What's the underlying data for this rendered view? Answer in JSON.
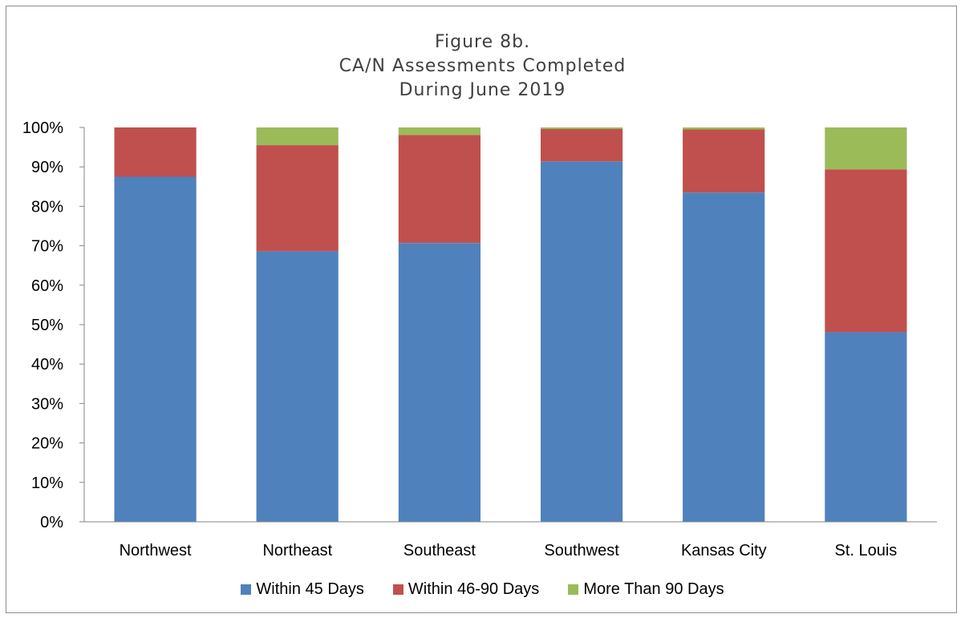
{
  "chart_data": {
    "type": "bar",
    "stacked": true,
    "title_lines": [
      "Figure 8b.",
      "CA/N Assessments Completed",
      "During June 2019"
    ],
    "categories": [
      "Northwest",
      "Northeast",
      "Southeast",
      "Southwest",
      "Kansas City",
      "St. Louis"
    ],
    "series": [
      {
        "name": "Within 45 Days",
        "color": "#4f81bd",
        "values": [
          87.5,
          68.6,
          70.7,
          91.4,
          83.5,
          48.1
        ]
      },
      {
        "name": "Within 46-90 Days",
        "color": "#c0504d",
        "values": [
          12.5,
          26.9,
          27.4,
          8.2,
          16.0,
          41.3
        ]
      },
      {
        "name": "More Than 90 Days",
        "color": "#9bbb59",
        "values": [
          0,
          4.5,
          1.9,
          0.4,
          0.5,
          10.6
        ]
      }
    ],
    "yticks": [
      "0%",
      "10%",
      "20%",
      "30%",
      "40%",
      "50%",
      "60%",
      "70%",
      "80%",
      "90%",
      "100%"
    ],
    "ylim": [
      0,
      100
    ],
    "grid": false,
    "legend_position": "bottom"
  }
}
